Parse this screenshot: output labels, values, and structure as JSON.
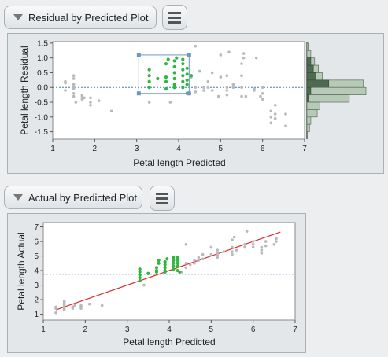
{
  "residual_plot": {
    "header_label": "Residual by Predicted Plot",
    "x_label": "Petal length Predicted",
    "y_label": "Petal length Residual",
    "x_ticks": [
      "1",
      "2",
      "3",
      "4",
      "5",
      "6",
      "7"
    ],
    "y_ticks": [
      "1.5",
      "1.0",
      "0.5",
      "0.0",
      "-0.5",
      "-1.0",
      "-1.5"
    ]
  },
  "actual_plot": {
    "header_label": "Actual by Predicted Plot",
    "x_label": "Petal length Predicted",
    "y_label": "Petal length Actual",
    "x_ticks": [
      "1",
      "2",
      "3",
      "4",
      "5",
      "6",
      "7"
    ],
    "y_ticks": [
      "7",
      "6",
      "5",
      "4",
      "3",
      "2",
      "1"
    ]
  },
  "colors": {
    "selected": "#2db83d",
    "unselected": "#b9b9b9",
    "fit_line": "#e2282d",
    "ref_line": "#3a7fc4",
    "hist": "#b7c9b7",
    "hist_selected": "#4e6a50"
  },
  "chart_data": [
    {
      "type": "scatter",
      "title": "",
      "xlabel": "Petal length Predicted",
      "ylabel": "Petal length Residual",
      "xlim": [
        1,
        7
      ],
      "ylim": [
        -1.75,
        1.55
      ],
      "reference_line_y": 0,
      "selection_box": {
        "x": [
          3.05,
          4.25
        ],
        "y": [
          -0.2,
          1.1
        ]
      },
      "series": [
        {
          "name": "",
          "role": "selected",
          "points": [
            [
              3.3,
              0.0
            ],
            [
              3.3,
              0.2
            ],
            [
              3.3,
              0.4
            ],
            [
              3.3,
              0.6
            ],
            [
              3.5,
              0.3
            ],
            [
              3.7,
              0.2
            ],
            [
              3.7,
              0.35
            ],
            [
              3.7,
              0.8
            ],
            [
              3.75,
              0.95
            ],
            [
              3.7,
              -0.05
            ],
            [
              3.9,
              0.1
            ],
            [
              3.9,
              0.3
            ],
            [
              3.9,
              0.5
            ],
            [
              3.9,
              0.7
            ],
            [
              3.9,
              0.9
            ],
            [
              3.95,
              1.0
            ],
            [
              3.9,
              0.0
            ],
            [
              4.1,
              0.0
            ],
            [
              4.1,
              0.2
            ],
            [
              4.1,
              0.4
            ],
            [
              4.1,
              0.6
            ],
            [
              4.1,
              0.8
            ],
            [
              4.1,
              0.95
            ],
            [
              4.2,
              0.1
            ],
            [
              4.2,
              0.25
            ],
            [
              4.2,
              0.45
            ],
            [
              4.2,
              0.65
            ],
            [
              4.2,
              -0.2
            ],
            [
              4.3,
              0.4
            ]
          ]
        },
        {
          "name": "",
          "role": "unselected",
          "points": [
            [
              1.3,
              0.15
            ],
            [
              1.3,
              -0.1
            ],
            [
              1.3,
              0.2
            ],
            [
              1.5,
              -0.05
            ],
            [
              1.5,
              0.0
            ],
            [
              1.5,
              0.1
            ],
            [
              1.5,
              -0.2
            ],
            [
              1.5,
              -0.3
            ],
            [
              1.5,
              0.4
            ],
            [
              1.5,
              0.3
            ],
            [
              1.55,
              -0.5
            ],
            [
              1.7,
              -0.25
            ],
            [
              1.7,
              -0.3
            ],
            [
              1.7,
              -0.4
            ],
            [
              1.75,
              -0.35
            ],
            [
              1.9,
              -0.35
            ],
            [
              1.9,
              -0.5
            ],
            [
              1.9,
              -0.6
            ],
            [
              2.1,
              -0.45
            ],
            [
              2.4,
              -0.8
            ],
            [
              3.3,
              -0.5
            ],
            [
              3.8,
              -0.5
            ],
            [
              4.3,
              0.35
            ],
            [
              4.4,
              -0.15
            ],
            [
              4.4,
              0.0
            ],
            [
              4.5,
              0.55
            ],
            [
              4.6,
              -0.1
            ],
            [
              4.6,
              0.0
            ],
            [
              4.7,
              0.2
            ],
            [
              4.7,
              0.0
            ],
            [
              4.8,
              0.5
            ],
            [
              4.8,
              -0.1
            ],
            [
              4.95,
              -0.3
            ],
            [
              5.0,
              0.35
            ],
            [
              5.0,
              1.1
            ],
            [
              5.15,
              -0.25
            ],
            [
              5.15,
              0.0
            ],
            [
              5.15,
              0.4
            ],
            [
              5.15,
              -0.1
            ],
            [
              5.2,
              1.2
            ],
            [
              5.3,
              0.0
            ],
            [
              5.3,
              0.1
            ],
            [
              5.5,
              0.0
            ],
            [
              5.5,
              -0.3
            ],
            [
              5.5,
              0.4
            ],
            [
              5.5,
              0.8
            ],
            [
              5.55,
              1.15
            ],
            [
              5.55,
              1.0
            ],
            [
              5.6,
              -0.3
            ],
            [
              5.8,
              -0.05
            ],
            [
              5.8,
              -0.1
            ],
            [
              5.85,
              1.0
            ],
            [
              5.95,
              -0.3
            ],
            [
              6.0,
              0.0
            ],
            [
              6.0,
              -0.2
            ],
            [
              6.0,
              -0.4
            ],
            [
              6.2,
              -0.8
            ],
            [
              6.2,
              -1.0
            ],
            [
              6.2,
              -1.2
            ],
            [
              6.3,
              -0.6
            ],
            [
              6.3,
              -0.9
            ],
            [
              6.3,
              -1.05
            ],
            [
              6.55,
              -1.3
            ],
            [
              6.55,
              -0.9
            ],
            [
              4.4,
              1.4
            ]
          ]
        }
      ],
      "marginal_histogram": {
        "bins": [
          {
            "from": 1.25,
            "to": 1.5,
            "count": 1,
            "selected": 0
          },
          {
            "from": 1.0,
            "to": 1.25,
            "count": 3,
            "selected": 0
          },
          {
            "from": 0.75,
            "to": 1.0,
            "count": 6,
            "selected": 3
          },
          {
            "from": 0.5,
            "to": 0.75,
            "count": 9,
            "selected": 5
          },
          {
            "from": 0.25,
            "to": 0.5,
            "count": 12,
            "selected": 7
          },
          {
            "from": 0.0,
            "to": 0.25,
            "count": 44,
            "selected": 17
          },
          {
            "from": -0.25,
            "to": 0.0,
            "count": 46,
            "selected": 3
          },
          {
            "from": -0.5,
            "to": -0.25,
            "count": 33,
            "selected": 1
          },
          {
            "from": -0.75,
            "to": -0.5,
            "count": 10,
            "selected": 0
          },
          {
            "from": -1.0,
            "to": -0.75,
            "count": 8,
            "selected": 0
          },
          {
            "from": -1.25,
            "to": -1.0,
            "count": 3,
            "selected": 0
          },
          {
            "from": -1.5,
            "to": -1.25,
            "count": 2,
            "selected": 0
          }
        ]
      }
    },
    {
      "type": "scatter",
      "title": "",
      "xlabel": "Petal length Predicted",
      "ylabel": "Petal length Actual",
      "xlim": [
        1,
        7
      ],
      "ylim": [
        0.6,
        7.3
      ],
      "reference_line_y": 3.75,
      "fit_line": [
        [
          1.3,
          1.3
        ],
        [
          6.65,
          6.65
        ]
      ],
      "series": [
        {
          "name": "",
          "role": "selected",
          "points": [
            [
              3.3,
              3.3
            ],
            [
              3.3,
              3.5
            ],
            [
              3.3,
              3.7
            ],
            [
              3.3,
              3.9
            ],
            [
              3.3,
              4.1
            ],
            [
              3.5,
              3.8
            ],
            [
              3.7,
              3.9
            ],
            [
              3.7,
              4.0
            ],
            [
              3.7,
              4.2
            ],
            [
              3.75,
              4.5
            ],
            [
              3.75,
              4.7
            ],
            [
              3.9,
              3.9
            ],
            [
              3.9,
              4.0
            ],
            [
              3.9,
              4.2
            ],
            [
              3.9,
              4.4
            ],
            [
              3.9,
              4.6
            ],
            [
              3.95,
              4.8
            ],
            [
              4.1,
              4.1
            ],
            [
              4.1,
              4.3
            ],
            [
              4.1,
              4.5
            ],
            [
              4.1,
              4.7
            ],
            [
              4.1,
              4.9
            ],
            [
              4.2,
              4.0
            ],
            [
              4.2,
              4.3
            ],
            [
              4.2,
              4.5
            ],
            [
              4.2,
              4.7
            ],
            [
              4.2,
              4.9
            ],
            [
              4.25,
              3.9
            ]
          ]
        },
        {
          "name": "",
          "role": "unselected",
          "points": [
            [
              1.3,
              1.1
            ],
            [
              1.3,
              1.4
            ],
            [
              1.3,
              1.5
            ],
            [
              1.5,
              1.3
            ],
            [
              1.5,
              1.4
            ],
            [
              1.5,
              1.5
            ],
            [
              1.5,
              1.6
            ],
            [
              1.5,
              1.7
            ],
            [
              1.5,
              1.8
            ],
            [
              1.5,
              1.9
            ],
            [
              1.7,
              1.4
            ],
            [
              1.7,
              1.5
            ],
            [
              1.75,
              1.6
            ],
            [
              1.9,
              1.4
            ],
            [
              1.9,
              1.5
            ],
            [
              1.9,
              1.6
            ],
            [
              2.1,
              1.7
            ],
            [
              2.4,
              1.6
            ],
            [
              3.4,
              3.0
            ],
            [
              4.3,
              3.9
            ],
            [
              4.4,
              4.2
            ],
            [
              4.4,
              4.5
            ],
            [
              4.5,
              4.4
            ],
            [
              4.6,
              4.5
            ],
            [
              4.6,
              4.7
            ],
            [
              4.7,
              4.7
            ],
            [
              4.7,
              4.9
            ],
            [
              4.8,
              4.8
            ],
            [
              4.8,
              5.1
            ],
            [
              5.0,
              5.1
            ],
            [
              5.0,
              5.6
            ],
            [
              5.15,
              4.9
            ],
            [
              5.15,
              5.1
            ],
            [
              5.15,
              5.2
            ],
            [
              5.15,
              5.4
            ],
            [
              5.3,
              5.3
            ],
            [
              5.5,
              5.1
            ],
            [
              5.5,
              5.3
            ],
            [
              5.5,
              5.6
            ],
            [
              5.5,
              6.1
            ],
            [
              5.55,
              6.3
            ],
            [
              5.6,
              5.4
            ],
            [
              5.8,
              5.6
            ],
            [
              5.8,
              5.8
            ],
            [
              5.85,
              6.7
            ],
            [
              6.0,
              5.6
            ],
            [
              6.0,
              5.8
            ],
            [
              6.0,
              6.0
            ],
            [
              6.2,
              5.2
            ],
            [
              6.2,
              5.4
            ],
            [
              6.2,
              5.6
            ],
            [
              6.3,
              5.7
            ],
            [
              6.3,
              6.0
            ],
            [
              6.5,
              5.8
            ],
            [
              6.55,
              6.2
            ],
            [
              6.55,
              6.0
            ],
            [
              4.4,
              5.8
            ]
          ]
        }
      ]
    }
  ]
}
